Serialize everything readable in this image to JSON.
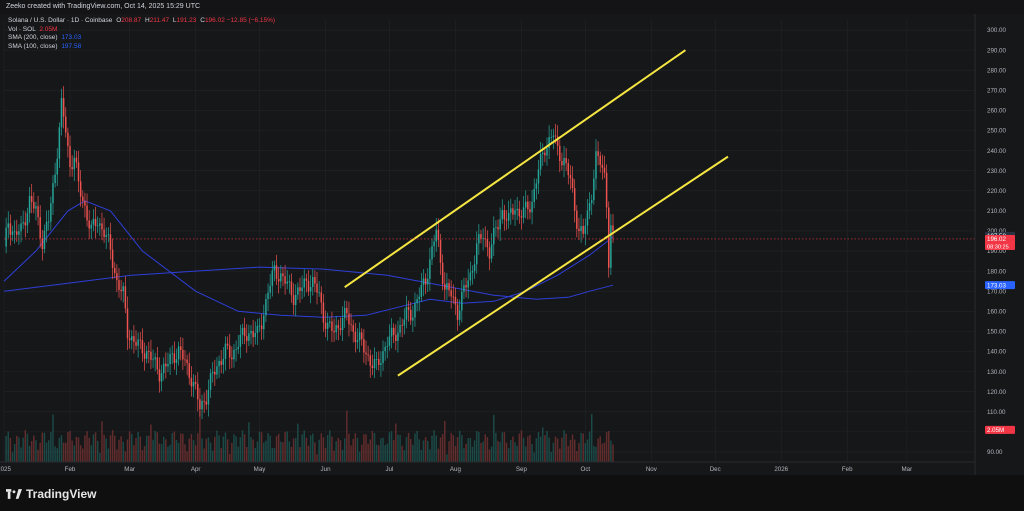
{
  "header": {
    "text": "Zeeko created with TradingView.com, Oct 14, 2025 15:29 UTC"
  },
  "legend": {
    "symbol": "Solana / U.S. Dollar · 1D · Coinbase",
    "o_label": "O",
    "o_value": "208.87",
    "h_label": "H",
    "h_value": "211.47",
    "l_label": "L",
    "l_value": "191.23",
    "c_label": "C",
    "c_value": "196.02",
    "change": "−12.85 (−6.15%)",
    "vol_label": "Vol · SOL",
    "vol_value": "2.05M",
    "sma200_label": "SMA (200, close)",
    "sma200_value": "173.03",
    "sma100_label": "SMA (100, close)",
    "sma100_value": "197.58"
  },
  "footer": {
    "brand": "TradingView"
  },
  "colors": {
    "up": "#26a69a",
    "down": "#ef5350",
    "channel": "#f5e642",
    "sma": "#2e3fd9",
    "background": "#161719",
    "grid": "#232428"
  },
  "chart_data": {
    "type": "candlestick",
    "title": "Solana / U.S. Dollar · 1D · Coinbase",
    "y_axis": {
      "ticks": [
        90,
        100,
        110,
        120,
        130,
        140,
        150,
        160,
        170,
        180,
        190,
        200,
        210,
        220,
        230,
        240,
        250,
        260,
        270,
        280,
        290,
        300
      ],
      "tick_labels": [
        "90.00",
        "100.00",
        "110.00",
        "120.00",
        "130.00",
        "140.00",
        "150.00",
        "160.00",
        "170.00",
        "180.00",
        "190.00",
        "200.00",
        "210.00",
        "220.00",
        "230.00",
        "240.00",
        "250.00",
        "260.00",
        "270.00",
        "280.00",
        "290.00",
        "300.00"
      ],
      "range": [
        85,
        305
      ],
      "price_tags": [
        {
          "value": 197.58,
          "label": "197.58",
          "color": "#2a3140"
        },
        {
          "value": 196.02,
          "label": "196.02",
          "sub": "08:30:25",
          "color": "#f23645"
        },
        {
          "value": 173.03,
          "label": "173.03",
          "color": "#2962ff"
        },
        {
          "value": 101,
          "label": "2.05M",
          "color": "#f23645"
        }
      ]
    },
    "x_axis": {
      "labels": [
        "2025",
        "Feb",
        "Mar",
        "Apr",
        "May",
        "Jun",
        "Jul",
        "Aug",
        "Sep",
        "Oct",
        "Nov",
        "Dec",
        "2026",
        "Feb",
        "Mar"
      ],
      "label_days": [
        0,
        31,
        59,
        90,
        120,
        151,
        181,
        212,
        243,
        273,
        304,
        334,
        365,
        396,
        424
      ]
    },
    "last_day": 286,
    "closes": [
      [
        0,
        190
      ],
      [
        2,
        205
      ],
      [
        5,
        198
      ],
      [
        8,
        200
      ],
      [
        12,
        215
      ],
      [
        15,
        210
      ],
      [
        18,
        195
      ],
      [
        21,
        205
      ],
      [
        24,
        230
      ],
      [
        27,
        262
      ],
      [
        29,
        250
      ],
      [
        31,
        232
      ],
      [
        33,
        238
      ],
      [
        35,
        222
      ],
      [
        38,
        212
      ],
      [
        41,
        200
      ],
      [
        44,
        205
      ],
      [
        47,
        200
      ],
      [
        50,
        190
      ],
      [
        53,
        175
      ],
      [
        56,
        168
      ],
      [
        58,
        150
      ],
      [
        61,
        145
      ],
      [
        64,
        142
      ],
      [
        67,
        140
      ],
      [
        70,
        135
      ],
      [
        73,
        130
      ],
      [
        76,
        132
      ],
      [
        79,
        138
      ],
      [
        82,
        140
      ],
      [
        85,
        135
      ],
      [
        88,
        127
      ],
      [
        90,
        120
      ],
      [
        92,
        112
      ],
      [
        95,
        118
      ],
      [
        98,
        128
      ],
      [
        101,
        135
      ],
      [
        104,
        140
      ],
      [
        107,
        138
      ],
      [
        110,
        145
      ],
      [
        113,
        148
      ],
      [
        116,
        150
      ],
      [
        119,
        148
      ],
      [
        121,
        155
      ],
      [
        124,
        170
      ],
      [
        127,
        180
      ],
      [
        130,
        178
      ],
      [
        133,
        173
      ],
      [
        136,
        168
      ],
      [
        139,
        170
      ],
      [
        142,
        175
      ],
      [
        145,
        174
      ],
      [
        148,
        168
      ],
      [
        150,
        158
      ],
      [
        152,
        152
      ],
      [
        155,
        150
      ],
      [
        158,
        155
      ],
      [
        161,
        158
      ],
      [
        164,
        150
      ],
      [
        167,
        145
      ],
      [
        170,
        140
      ],
      [
        172,
        135
      ],
      [
        175,
        132
      ],
      [
        178,
        140
      ],
      [
        180,
        145
      ],
      [
        183,
        148
      ],
      [
        186,
        152
      ],
      [
        189,
        158
      ],
      [
        192,
        160
      ],
      [
        195,
        168
      ],
      [
        198,
        176
      ],
      [
        201,
        190
      ],
      [
        203,
        200
      ],
      [
        205,
        185
      ],
      [
        207,
        172
      ],
      [
        210,
        168
      ],
      [
        213,
        160
      ],
      [
        216,
        170
      ],
      [
        219,
        178
      ],
      [
        222,
        192
      ],
      [
        225,
        198
      ],
      [
        228,
        190
      ],
      [
        231,
        200
      ],
      [
        234,
        210
      ],
      [
        237,
        205
      ],
      [
        240,
        213
      ],
      [
        242,
        208
      ],
      [
        245,
        210
      ],
      [
        248,
        215
      ],
      [
        251,
        230
      ],
      [
        254,
        242
      ],
      [
        256,
        245
      ],
      [
        258,
        248
      ],
      [
        260,
        240
      ],
      [
        263,
        235
      ],
      [
        266,
        225
      ],
      [
        268,
        212
      ],
      [
        270,
        200
      ],
      [
        272,
        198
      ],
      [
        274,
        208
      ],
      [
        276,
        220
      ],
      [
        278,
        236
      ],
      [
        280,
        234
      ],
      [
        282,
        228
      ],
      [
        283,
        215
      ],
      [
        284,
        185
      ],
      [
        285,
        200
      ],
      [
        286,
        196
      ]
    ],
    "sma200": [
      [
        0,
        170
      ],
      [
        30,
        174
      ],
      [
        60,
        178
      ],
      [
        90,
        180
      ],
      [
        120,
        182
      ],
      [
        150,
        181
      ],
      [
        180,
        178
      ],
      [
        210,
        172
      ],
      [
        230,
        168
      ],
      [
        250,
        166
      ],
      [
        265,
        167
      ],
      [
        275,
        170
      ],
      [
        286,
        173
      ]
    ],
    "sma100": [
      [
        0,
        175
      ],
      [
        15,
        190
      ],
      [
        30,
        210
      ],
      [
        38,
        215
      ],
      [
        50,
        210
      ],
      [
        65,
        190
      ],
      [
        90,
        170
      ],
      [
        110,
        160
      ],
      [
        130,
        158
      ],
      [
        150,
        157
      ],
      [
        170,
        158
      ],
      [
        185,
        162
      ],
      [
        200,
        166
      ],
      [
        215,
        164
      ],
      [
        230,
        165
      ],
      [
        245,
        170
      ],
      [
        260,
        178
      ],
      [
        275,
        188
      ],
      [
        286,
        197
      ]
    ],
    "channel_upper": [
      [
        160,
        172
      ],
      [
        320,
        290
      ]
    ],
    "channel_lower": [
      [
        185,
        128
      ],
      [
        340,
        237
      ]
    ]
  }
}
